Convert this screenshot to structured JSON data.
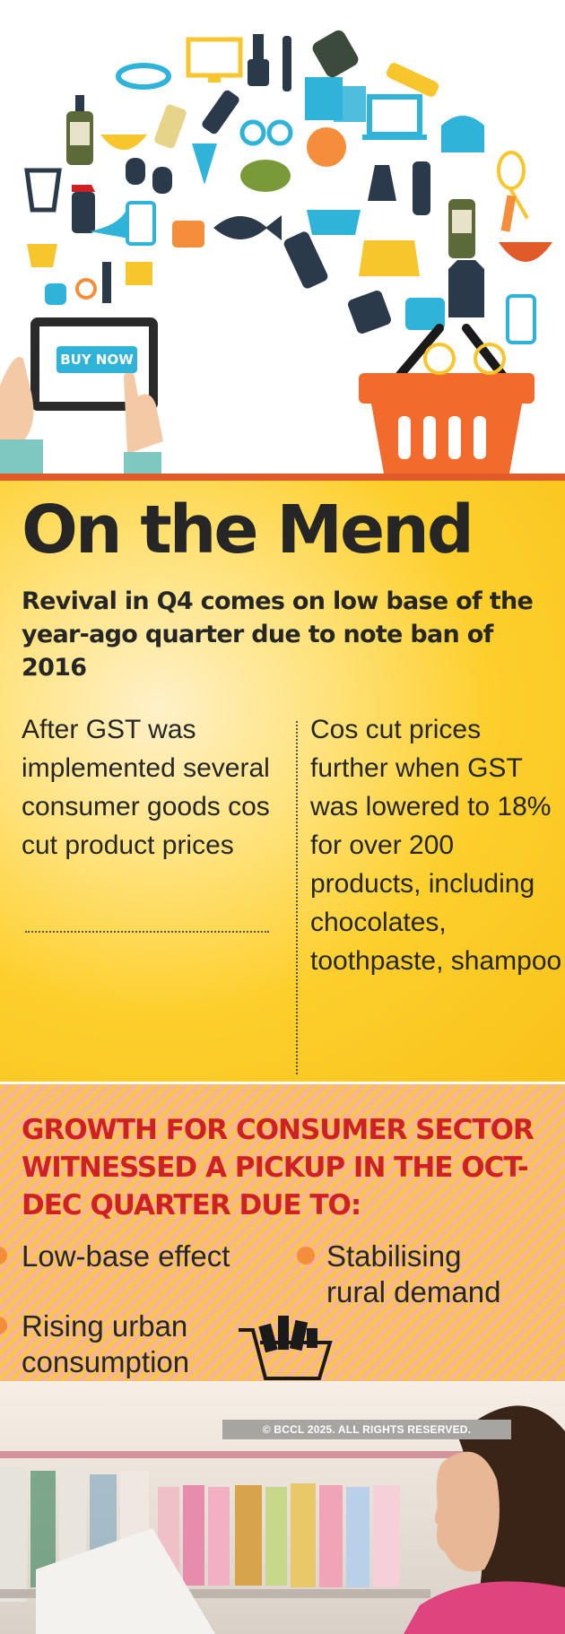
{
  "hero": {
    "buy_button": "BUY NOW"
  },
  "headline": {
    "title": "On the Mend",
    "subtitle": "Revival in Q4 comes on low base of the year-ago quarter due to note ban of 2016"
  },
  "columns": {
    "left": "After GST was implemented several consumer goods cos cut product prices",
    "right": "Cos cut prices further when GST was lowered to 18% for over 200 products, including chocolates, toothpaste, shampoo"
  },
  "growth": {
    "heading": "GROWTH FOR CONSUMER SECTOR WITNESSED A PICKUP IN THE OCT-DEC QUARTER DUE TO:",
    "bullets": [
      "Low-base effect",
      "Stabilising rural demand",
      "Rising urban consumption"
    ]
  },
  "footer": {
    "copyright": "© BCCL 2025. ALL RIGHTS RESERVED."
  },
  "colors": {
    "yellow_bg": "#fdcf2c",
    "orange_rule": "#e15a2a",
    "heading_red": "#cf2024",
    "bullet_orange": "#f48e3a",
    "accent_teal": "#2fb3d9"
  }
}
